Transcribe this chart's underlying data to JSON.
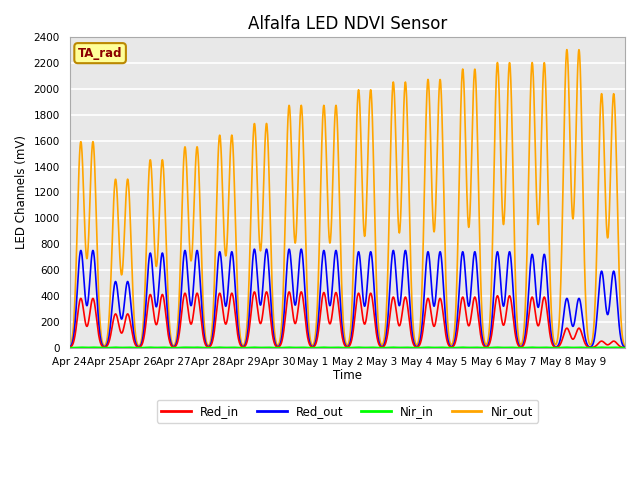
{
  "title": "Alfalfa LED NDVI Sensor",
  "ylabel": "LED Channels (mV)",
  "xlabel": "Time",
  "ylim": [
    0,
    2400
  ],
  "plot_bg_color": "#e8e8e8",
  "grid_color": "white",
  "ta_rad_label": "TA_rad",
  "legend_entries": [
    "Red_in",
    "Red_out",
    "Nir_in",
    "Nir_out"
  ],
  "line_colors": [
    "red",
    "blue",
    "lime",
    "orange"
  ],
  "x_tick_labels": [
    "Apr 24",
    "Apr 25",
    "Apr 26",
    "Apr 27",
    "Apr 28",
    "Apr 29",
    "Apr 30",
    "May 1",
    "May 2",
    "May 3",
    "May 4",
    "May 5",
    "May 6",
    "May 7",
    "May 8",
    "May 9"
  ],
  "num_days": 16,
  "pulses_per_day": 2,
  "sigma": 0.1,
  "red_in_peaks": [
    380,
    260,
    410,
    420,
    420,
    430,
    430,
    425,
    420,
    390,
    380,
    390,
    400,
    390,
    150,
    50
  ],
  "red_out_peaks": [
    750,
    510,
    730,
    750,
    740,
    760,
    760,
    750,
    740,
    750,
    740,
    740,
    740,
    720,
    380,
    590
  ],
  "nir_in_peaks": [
    3,
    3,
    3,
    3,
    3,
    3,
    3,
    3,
    3,
    3,
    3,
    3,
    3,
    3,
    3,
    3
  ],
  "nir_out_peaks": [
    1590,
    1300,
    1450,
    1550,
    1640,
    1730,
    1870,
    1870,
    1990,
    2050,
    2070,
    2150,
    2200,
    2200,
    2300,
    1960
  ]
}
